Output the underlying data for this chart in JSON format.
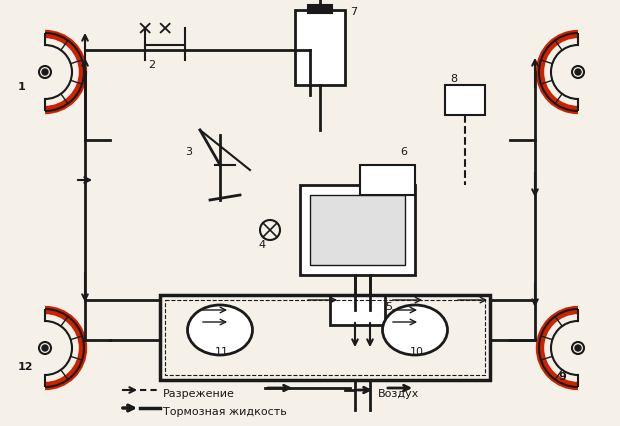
{
  "title": "",
  "bg_color": "#f5f0e8",
  "line_color": "#1a1a1a",
  "red_color": "#cc2200",
  "legend": {
    "razrezhenie": "⇐╱╲ Разрежение",
    "vozduh": "⇐ Воздух",
    "tormoznaya": "←— Тормозная жидкость"
  },
  "labels": [
    "1",
    "2",
    "3",
    "4",
    "5",
    "6",
    "7",
    "8",
    "9",
    "10",
    "11",
    "12"
  ],
  "figsize": [
    6.2,
    4.26
  ],
  "dpi": 100
}
